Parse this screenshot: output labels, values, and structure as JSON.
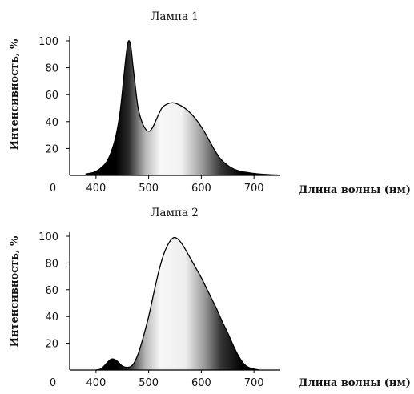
{
  "chart_data": [
    {
      "type": "area",
      "title": "Лампа 1",
      "xlabel": "Длина волны (нм)",
      "ylabel": "Интенсивность, %",
      "origin_label": "0",
      "xlim": [
        350,
        750
      ],
      "ylim": [
        0,
        100
      ],
      "xticks": [
        400,
        500,
        600,
        700
      ],
      "yticks": [
        20,
        40,
        60,
        80,
        100
      ],
      "grid": false,
      "fill": "gradient by wavelength: dark blue region, light center, dark red region",
      "series": [
        {
          "x": [
            380,
            400,
            420,
            435,
            445,
            452,
            458,
            462,
            466,
            470,
            475,
            480,
            487,
            495,
            502,
            508,
            515,
            525,
            535,
            545,
            555,
            565,
            575,
            585,
            595,
            605,
            615,
            625,
            635,
            645,
            660,
            675,
            690,
            710,
            730,
            745
          ],
          "y": [
            1,
            3,
            10,
            25,
            45,
            70,
            92,
            100,
            96,
            82,
            65,
            50,
            40,
            34,
            33,
            36,
            42,
            50,
            53,
            54,
            53,
            51,
            48,
            44,
            39,
            33,
            26,
            19,
            13,
            9,
            5,
            3,
            2,
            1,
            0.5,
            0.3
          ]
        }
      ]
    },
    {
      "type": "area",
      "title": "Лампа 2",
      "xlabel": "Длина волны (нм)",
      "ylabel": "Интенсивность, %",
      "origin_label": "0",
      "xlim": [
        350,
        750
      ],
      "ylim": [
        0,
        100
      ],
      "xticks": [
        400,
        500,
        600,
        700
      ],
      "yticks": [
        20,
        40,
        60,
        80,
        100
      ],
      "grid": false,
      "fill": "gradient by wavelength: dark blue region, light center, dark red region",
      "series": [
        {
          "x": [
            400,
            410,
            420,
            428,
            435,
            442,
            450,
            460,
            470,
            480,
            490,
            500,
            510,
            520,
            530,
            540,
            548,
            555,
            562,
            570,
            580,
            590,
            600,
            610,
            620,
            630,
            640,
            650,
            660,
            670,
            680,
            690,
            700,
            710
          ],
          "y": [
            0,
            1,
            5,
            8,
            8,
            6,
            3,
            2,
            4,
            12,
            25,
            40,
            58,
            75,
            88,
            96,
            99,
            98,
            95,
            90,
            83,
            76,
            69,
            61,
            53,
            45,
            36,
            28,
            19,
            11,
            5,
            2,
            0.8,
            0
          ]
        }
      ]
    }
  ]
}
